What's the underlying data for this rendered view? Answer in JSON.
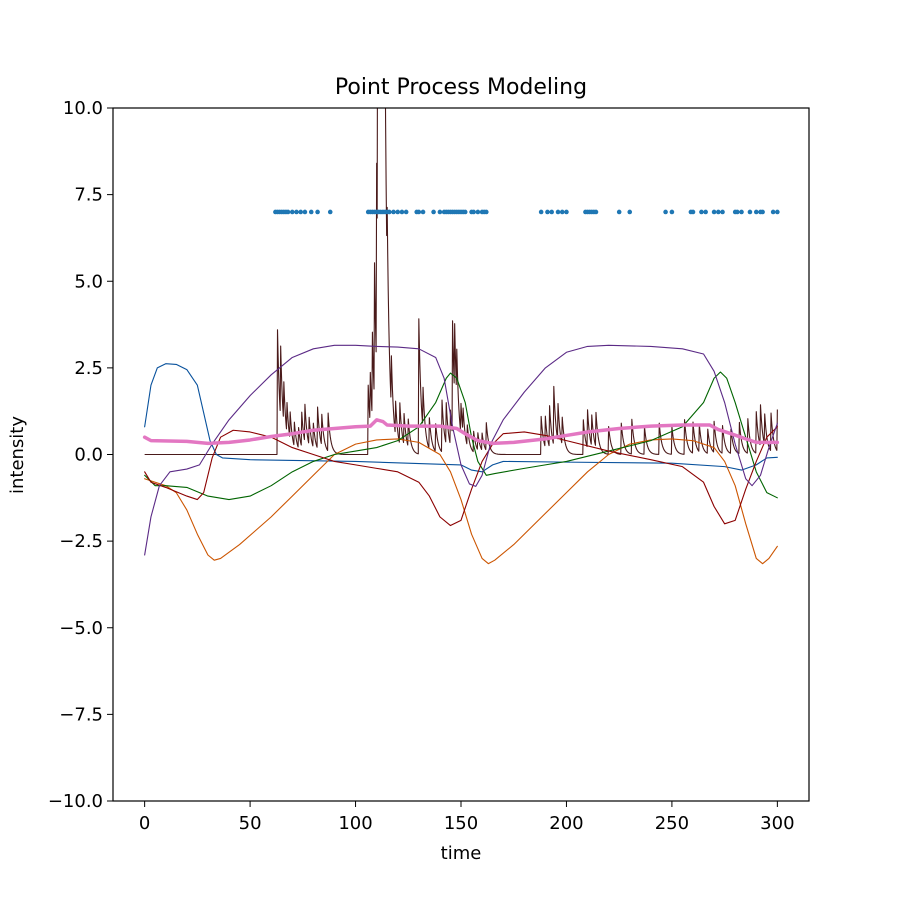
{
  "chart_data": {
    "type": "line",
    "title": "Point Process Modeling",
    "xlabel": "time",
    "ylabel": "intensity",
    "xlim": [
      -15,
      315
    ],
    "ylim": [
      -10,
      10
    ],
    "xticks": [
      0,
      50,
      100,
      150,
      200,
      250,
      300
    ],
    "yticks": [
      -10.0,
      -7.5,
      -5.0,
      -2.5,
      0.0,
      2.5,
      5.0,
      7.5,
      10.0
    ],
    "xtick_labels": [
      "0",
      "50",
      "100",
      "150",
      "200",
      "250",
      "300"
    ],
    "ytick_labels": [
      "−10.0",
      "−7.5",
      "−5.0",
      "−2.5",
      "0.0",
      "2.5",
      "5.0",
      "7.5",
      "10.0"
    ],
    "grid": false,
    "legend": "none",
    "series": [
      {
        "color": "#08519c",
        "points": [
          [
            0,
            0.8
          ],
          [
            3,
            2.0
          ],
          [
            6,
            2.5
          ],
          [
            10,
            2.62
          ],
          [
            15,
            2.6
          ],
          [
            20,
            2.45
          ],
          [
            25,
            2.0
          ],
          [
            28,
            1.2
          ],
          [
            31,
            0.4
          ],
          [
            34,
            0.0
          ],
          [
            37,
            -0.1
          ],
          [
            50,
            -0.15
          ],
          [
            100,
            -0.2
          ],
          [
            150,
            -0.3
          ],
          [
            155,
            -0.45
          ],
          [
            160,
            -0.5
          ],
          [
            165,
            -0.3
          ],
          [
            170,
            -0.2
          ],
          [
            200,
            -0.22
          ],
          [
            250,
            -0.25
          ],
          [
            275,
            -0.35
          ],
          [
            283,
            -0.45
          ],
          [
            290,
            -0.3
          ],
          [
            295,
            -0.1
          ],
          [
            300,
            -0.08
          ]
        ]
      },
      {
        "color": "#cc5500",
        "points": [
          [
            0,
            -0.7
          ],
          [
            5,
            -0.8
          ],
          [
            10,
            -0.9
          ],
          [
            15,
            -1.1
          ],
          [
            20,
            -1.6
          ],
          [
            25,
            -2.3
          ],
          [
            30,
            -2.9
          ],
          [
            33,
            -3.05
          ],
          [
            36,
            -3.0
          ],
          [
            45,
            -2.6
          ],
          [
            60,
            -1.8
          ],
          [
            70,
            -1.2
          ],
          [
            80,
            -0.6
          ],
          [
            90,
            0.0
          ],
          [
            100,
            0.3
          ],
          [
            110,
            0.42
          ],
          [
            120,
            0.45
          ],
          [
            130,
            0.35
          ],
          [
            140,
            0.0
          ],
          [
            145,
            -0.5
          ],
          [
            150,
            -1.3
          ],
          [
            155,
            -2.3
          ],
          [
            160,
            -3.0
          ],
          [
            163,
            -3.15
          ],
          [
            166,
            -3.05
          ],
          [
            175,
            -2.6
          ],
          [
            190,
            -1.7
          ],
          [
            200,
            -1.1
          ],
          [
            210,
            -0.5
          ],
          [
            220,
            0.0
          ],
          [
            230,
            0.3
          ],
          [
            240,
            0.42
          ],
          [
            250,
            0.45
          ],
          [
            260,
            0.4
          ],
          [
            270,
            0.2
          ],
          [
            275,
            -0.2
          ],
          [
            280,
            -0.9
          ],
          [
            285,
            -2.0
          ],
          [
            290,
            -3.0
          ],
          [
            293,
            -3.15
          ],
          [
            296,
            -3.0
          ],
          [
            300,
            -2.65
          ]
        ]
      },
      {
        "color": "#006400",
        "points": [
          [
            0,
            -0.6
          ],
          [
            5,
            -0.9
          ],
          [
            10,
            -0.9
          ],
          [
            20,
            -0.95
          ],
          [
            30,
            -1.2
          ],
          [
            40,
            -1.3
          ],
          [
            50,
            -1.2
          ],
          [
            60,
            -0.9
          ],
          [
            70,
            -0.5
          ],
          [
            80,
            -0.2
          ],
          [
            90,
            0.0
          ],
          [
            100,
            0.1
          ],
          [
            110,
            0.2
          ],
          [
            120,
            0.4
          ],
          [
            130,
            0.8
          ],
          [
            138,
            1.5
          ],
          [
            143,
            2.2
          ],
          [
            145,
            2.35
          ],
          [
            148,
            2.2
          ],
          [
            152,
            1.5
          ],
          [
            155,
            0.5
          ],
          [
            158,
            -0.2
          ],
          [
            162,
            -0.6
          ],
          [
            166,
            -0.55
          ],
          [
            180,
            -0.4
          ],
          [
            190,
            -0.3
          ],
          [
            200,
            -0.2
          ],
          [
            220,
            0.1
          ],
          [
            240,
            0.4
          ],
          [
            255,
            0.8
          ],
          [
            265,
            1.5
          ],
          [
            270,
            2.2
          ],
          [
            273,
            2.38
          ],
          [
            276,
            2.2
          ],
          [
            280,
            1.5
          ],
          [
            285,
            0.5
          ],
          [
            290,
            -0.5
          ],
          [
            295,
            -1.1
          ],
          [
            300,
            -1.25
          ]
        ]
      },
      {
        "color": "#8b0000",
        "points": [
          [
            0,
            -0.5
          ],
          [
            3,
            -0.8
          ],
          [
            10,
            -0.95
          ],
          [
            20,
            -1.2
          ],
          [
            25,
            -1.3
          ],
          [
            28,
            -1.1
          ],
          [
            32,
            -0.1
          ],
          [
            36,
            0.5
          ],
          [
            42,
            0.7
          ],
          [
            50,
            0.65
          ],
          [
            60,
            0.5
          ],
          [
            70,
            0.2
          ],
          [
            80,
            0.0
          ],
          [
            90,
            -0.2
          ],
          [
            100,
            -0.3
          ],
          [
            110,
            -0.4
          ],
          [
            120,
            -0.5
          ],
          [
            130,
            -0.8
          ],
          [
            135,
            -1.2
          ],
          [
            140,
            -1.8
          ],
          [
            145,
            -2.05
          ],
          [
            150,
            -1.9
          ],
          [
            155,
            -1.0
          ],
          [
            160,
            -0.2
          ],
          [
            165,
            0.3
          ],
          [
            170,
            0.6
          ],
          [
            180,
            0.65
          ],
          [
            190,
            0.55
          ],
          [
            200,
            0.4
          ],
          [
            220,
            0.1
          ],
          [
            240,
            -0.15
          ],
          [
            255,
            -0.35
          ],
          [
            265,
            -0.8
          ],
          [
            270,
            -1.5
          ],
          [
            275,
            -2.0
          ],
          [
            280,
            -1.9
          ],
          [
            285,
            -1.0
          ],
          [
            290,
            -0.2
          ],
          [
            295,
            0.5
          ],
          [
            300,
            0.8
          ]
        ]
      },
      {
        "color": "#5b2a86",
        "points": [
          [
            0,
            -2.9
          ],
          [
            3,
            -1.8
          ],
          [
            7,
            -0.9
          ],
          [
            12,
            -0.5
          ],
          [
            20,
            -0.42
          ],
          [
            26,
            -0.3
          ],
          [
            32,
            0.3
          ],
          [
            40,
            1.0
          ],
          [
            50,
            1.7
          ],
          [
            60,
            2.3
          ],
          [
            70,
            2.8
          ],
          [
            80,
            3.05
          ],
          [
            90,
            3.15
          ],
          [
            100,
            3.15
          ],
          [
            110,
            3.12
          ],
          [
            120,
            3.1
          ],
          [
            130,
            3.05
          ],
          [
            138,
            2.8
          ],
          [
            142,
            2.2
          ],
          [
            146,
            0.8
          ],
          [
            150,
            -0.3
          ],
          [
            154,
            -0.85
          ],
          [
            157,
            -0.92
          ],
          [
            160,
            -0.6
          ],
          [
            164,
            0.3
          ],
          [
            170,
            1.0
          ],
          [
            180,
            1.8
          ],
          [
            190,
            2.5
          ],
          [
            200,
            2.95
          ],
          [
            210,
            3.12
          ],
          [
            220,
            3.15
          ],
          [
            240,
            3.12
          ],
          [
            255,
            3.05
          ],
          [
            265,
            2.9
          ],
          [
            270,
            2.4
          ],
          [
            275,
            1.5
          ],
          [
            280,
            0.3
          ],
          [
            285,
            -0.7
          ],
          [
            288,
            -0.9
          ],
          [
            292,
            -0.6
          ],
          [
            296,
            0.2
          ],
          [
            300,
            0.9
          ]
        ]
      },
      {
        "color": "#e377c2",
        "width": 3.5,
        "points": [
          [
            0,
            0.5
          ],
          [
            3,
            0.4
          ],
          [
            20,
            0.38
          ],
          [
            30,
            0.32
          ],
          [
            40,
            0.35
          ],
          [
            50,
            0.42
          ],
          [
            60,
            0.52
          ],
          [
            70,
            0.6
          ],
          [
            80,
            0.7
          ],
          [
            90,
            0.75
          ],
          [
            100,
            0.8
          ],
          [
            107,
            0.82
          ],
          [
            110,
            1.0
          ],
          [
            113,
            0.95
          ],
          [
            115,
            0.85
          ],
          [
            125,
            0.82
          ],
          [
            140,
            0.82
          ],
          [
            148,
            0.75
          ],
          [
            152,
            0.6
          ],
          [
            158,
            0.4
          ],
          [
            165,
            0.32
          ],
          [
            175,
            0.35
          ],
          [
            190,
            0.45
          ],
          [
            200,
            0.55
          ],
          [
            210,
            0.65
          ],
          [
            225,
            0.75
          ],
          [
            240,
            0.82
          ],
          [
            255,
            0.85
          ],
          [
            268,
            0.85
          ],
          [
            272,
            0.72
          ],
          [
            278,
            0.6
          ],
          [
            285,
            0.45
          ],
          [
            290,
            0.35
          ],
          [
            300,
            0.35
          ]
        ]
      }
    ],
    "spike_train": {
      "color": "#4a1a1a",
      "baseline": 0,
      "decay": 1.2,
      "events": [
        [
          63,
          3.6
        ],
        [
          64.5,
          2.1
        ],
        [
          66,
          1.2
        ],
        [
          67.5,
          0.9
        ],
        [
          69,
          0.8
        ],
        [
          71,
          0.7
        ],
        [
          73,
          0.6
        ],
        [
          74.5,
          1.0
        ],
        [
          76,
          1.1
        ],
        [
          78,
          0.8
        ],
        [
          80,
          0.7
        ],
        [
          82,
          1.2
        ],
        [
          84,
          0.9
        ],
        [
          87,
          1.1
        ],
        [
          106,
          2.0
        ],
        [
          107,
          1.5
        ],
        [
          108,
          2.5
        ],
        [
          109,
          4.0
        ],
        [
          110,
          6.0
        ],
        [
          110.5,
          9.0
        ],
        [
          111,
          10.5
        ],
        [
          111.5,
          8.0
        ],
        [
          112,
          10.5
        ],
        [
          112.5,
          7.0
        ],
        [
          113,
          5.0
        ],
        [
          114,
          3.0
        ],
        [
          115,
          2.0
        ],
        [
          117,
          1.5
        ],
        [
          119,
          1.0
        ],
        [
          121,
          1.2
        ],
        [
          123,
          0.9
        ],
        [
          125,
          0.8
        ],
        [
          130,
          3.9
        ],
        [
          132,
          1.2
        ],
        [
          135,
          0.9
        ],
        [
          138,
          0.8
        ],
        [
          141,
          1.5
        ],
        [
          143,
          1.2
        ],
        [
          145,
          1.0
        ],
        [
          146,
          3.3
        ],
        [
          147,
          2.1
        ],
        [
          148,
          1.4
        ],
        [
          150,
          0.9
        ],
        [
          151,
          0.7
        ],
        [
          153,
          0.6
        ],
        [
          156,
          0.6
        ],
        [
          158,
          0.5
        ],
        [
          160,
          0.5
        ],
        [
          162,
          0.8
        ],
        [
          188,
          1.1
        ],
        [
          190,
          0.9
        ],
        [
          192,
          1.2
        ],
        [
          194,
          1.7
        ],
        [
          196,
          1.1
        ],
        [
          198,
          0.8
        ],
        [
          208,
          1.0
        ],
        [
          210,
          1.1
        ],
        [
          212,
          0.9
        ],
        [
          214,
          1.0
        ],
        [
          220,
          0.8
        ],
        [
          226,
          0.9
        ],
        [
          231,
          1.0
        ],
        [
          237,
          0.8
        ],
        [
          244,
          0.9
        ],
        [
          250,
          0.8
        ],
        [
          256,
          1.0
        ],
        [
          260,
          0.9
        ],
        [
          263,
          0.8
        ],
        [
          267,
          0.7
        ],
        [
          270,
          0.9
        ],
        [
          274,
          0.8
        ],
        [
          278,
          0.7
        ],
        [
          282,
          0.9
        ],
        [
          286,
          1.0
        ],
        [
          290,
          1.2
        ],
        [
          292,
          1.2
        ],
        [
          294,
          0.9
        ],
        [
          297,
          1.1
        ],
        [
          300,
          1.2
        ]
      ]
    },
    "scatter": {
      "color": "#1f77b4",
      "y": 7.0,
      "x": [
        62,
        63,
        64,
        65,
        66,
        67,
        68,
        70,
        72,
        74,
        76,
        79,
        82,
        88,
        106,
        107,
        108,
        109,
        110,
        111,
        112,
        113,
        114,
        115,
        116,
        118,
        120,
        122,
        124,
        129,
        130,
        132,
        137,
        140,
        142,
        143,
        144,
        145,
        146,
        147,
        148,
        149,
        150,
        151,
        152,
        155,
        156,
        158,
        160,
        161,
        162,
        188,
        191,
        193,
        196,
        198,
        200,
        209,
        210,
        211,
        212,
        213,
        214,
        225,
        230,
        247,
        250,
        259,
        260,
        264,
        266,
        270,
        272,
        274,
        280,
        281,
        283,
        287,
        290,
        292,
        293,
        298,
        300
      ]
    }
  }
}
